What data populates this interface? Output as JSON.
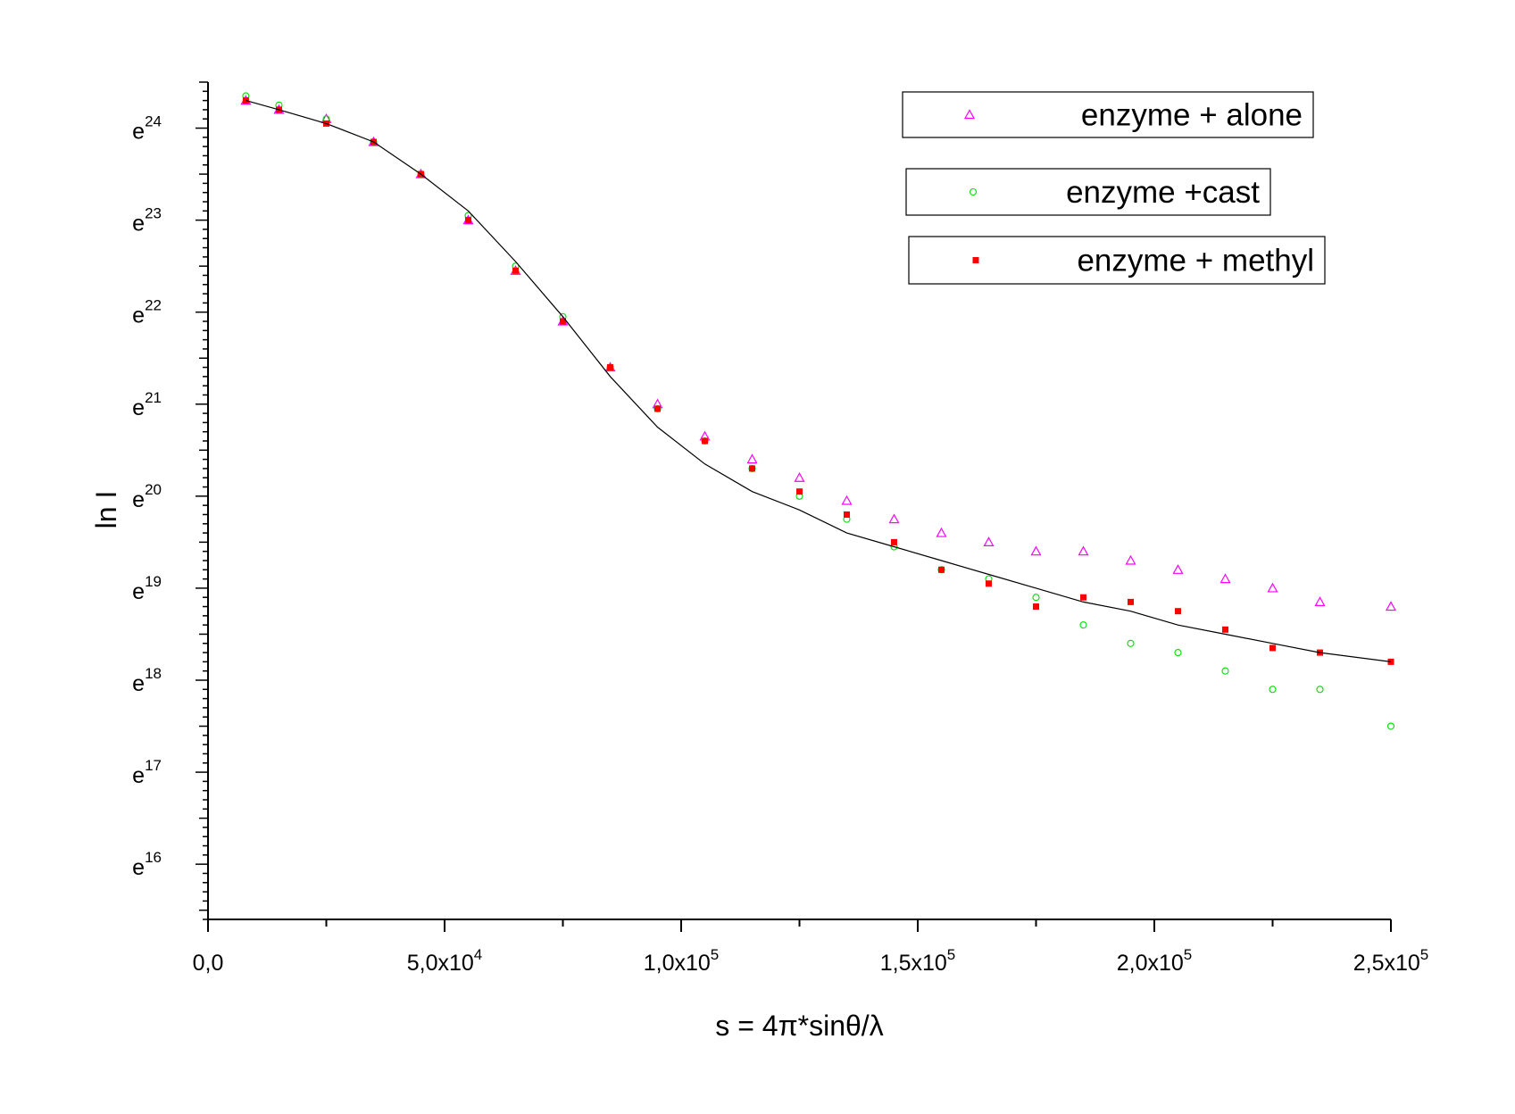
{
  "chart_data": {
    "type": "scatter",
    "xlabel": "s = 4π*sinθ/λ",
    "ylabel": "ln I",
    "xlim": [
      0,
      250000
    ],
    "ylim": [
      15.4,
      24.5
    ],
    "y_scale": "log (base e)",
    "x_ticks": [
      {
        "value": 0,
        "mant": "0,0",
        "exp": ""
      },
      {
        "value": 50000,
        "mant": "5,0x10",
        "exp": "4"
      },
      {
        "value": 100000,
        "mant": "1,0x10",
        "exp": "5"
      },
      {
        "value": 150000,
        "mant": "1,5x10",
        "exp": "5"
      },
      {
        "value": 200000,
        "mant": "2,0x10",
        "exp": "5"
      },
      {
        "value": 250000,
        "mant": "2,5x10",
        "exp": "5"
      }
    ],
    "y_ticks": [
      {
        "value": 16,
        "base": "e",
        "exp": "16"
      },
      {
        "value": 17,
        "base": "e",
        "exp": "17"
      },
      {
        "value": 18,
        "base": "e",
        "exp": "18"
      },
      {
        "value": 19,
        "base": "e",
        "exp": "19"
      },
      {
        "value": 20,
        "base": "e",
        "exp": "20"
      },
      {
        "value": 21,
        "base": "e",
        "exp": "21"
      },
      {
        "value": 22,
        "base": "e",
        "exp": "22"
      },
      {
        "value": 23,
        "base": "e",
        "exp": "23"
      },
      {
        "value": 24,
        "base": "e",
        "exp": "24"
      }
    ],
    "grid": false,
    "legend_position": "top-right",
    "series": [
      {
        "name": "enzyme + alone",
        "marker": "open-triangle",
        "color": "#ff00ff",
        "x": [
          8000,
          15000,
          25000,
          35000,
          45000,
          55000,
          65000,
          75000,
          85000,
          95000,
          105000,
          115000,
          125000,
          135000,
          145000,
          155000,
          165000,
          175000,
          185000,
          195000,
          205000,
          215000,
          225000,
          235000,
          250000
        ],
        "y": [
          24.3,
          24.2,
          24.1,
          23.85,
          23.5,
          23.0,
          22.45,
          21.9,
          21.4,
          21.0,
          20.65,
          20.4,
          20.2,
          19.95,
          19.75,
          19.6,
          19.5,
          19.4,
          19.4,
          19.3,
          19.2,
          19.1,
          19.0,
          18.85,
          18.8
        ]
      },
      {
        "name": "enzyme +cast",
        "marker": "open-circle",
        "color": "#00dd00",
        "x": [
          8000,
          15000,
          25000,
          35000,
          45000,
          55000,
          65000,
          75000,
          85000,
          95000,
          105000,
          115000,
          125000,
          135000,
          145000,
          155000,
          165000,
          175000,
          185000,
          195000,
          205000,
          215000,
          225000,
          235000,
          250000
        ],
        "y": [
          24.35,
          24.25,
          24.1,
          23.85,
          23.5,
          23.05,
          22.5,
          21.95,
          21.4,
          20.95,
          20.6,
          20.3,
          20.0,
          19.75,
          19.45,
          19.2,
          19.1,
          18.9,
          18.6,
          18.4,
          18.3,
          18.1,
          17.9,
          17.9,
          17.5
        ]
      },
      {
        "name": "enzyme + methyl",
        "marker": "filled-square",
        "color": "#ff0000",
        "x": [
          8000,
          15000,
          25000,
          35000,
          45000,
          55000,
          65000,
          75000,
          85000,
          95000,
          105000,
          115000,
          125000,
          135000,
          145000,
          155000,
          165000,
          175000,
          185000,
          195000,
          205000,
          215000,
          225000,
          235000,
          250000
        ],
        "y": [
          24.3,
          24.2,
          24.05,
          23.85,
          23.5,
          23.0,
          22.45,
          21.9,
          21.4,
          20.95,
          20.6,
          20.3,
          20.05,
          19.8,
          19.5,
          19.2,
          19.05,
          18.8,
          18.9,
          18.85,
          18.75,
          18.55,
          18.35,
          18.3,
          18.2
        ]
      },
      {
        "name": "",
        "marker": "line",
        "color": "#000000",
        "x": [
          8000,
          15000,
          25000,
          35000,
          45000,
          55000,
          65000,
          75000,
          85000,
          95000,
          105000,
          115000,
          125000,
          135000,
          145000,
          155000,
          165000,
          175000,
          185000,
          195000,
          205000,
          215000,
          225000,
          235000,
          250000
        ],
        "y": [
          24.3,
          24.2,
          24.05,
          23.85,
          23.5,
          23.1,
          22.55,
          21.95,
          21.3,
          20.75,
          20.35,
          20.05,
          19.85,
          19.6,
          19.45,
          19.3,
          19.15,
          19.0,
          18.85,
          18.75,
          18.6,
          18.5,
          18.4,
          18.3,
          18.2
        ]
      }
    ]
  }
}
